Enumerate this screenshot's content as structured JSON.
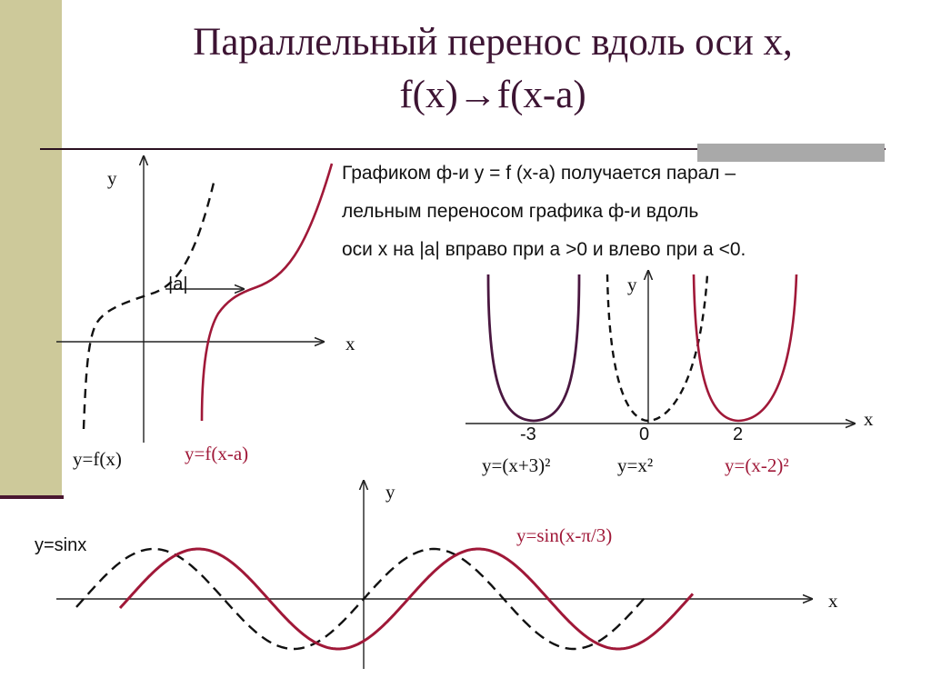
{
  "title": {
    "line1": "Параллельный перенос вдоль оси х,",
    "line2": "f(x)→f(x-a)"
  },
  "description": {
    "line1": "Графиком ф-и у = f (х-а) получается парал –",
    "line2": "лельным переносом графика ф-и вдоль",
    "line3": "оси х на |а| вправо при а >0 и влево при а <0."
  },
  "figure1": {
    "y_axis": "y",
    "x_axis": "x",
    "shift_label": "|a|",
    "curve_original": "y=f(x)",
    "curve_shifted": "y=f(x-a)"
  },
  "figure2": {
    "y_axis": "y",
    "x_axis": "x",
    "ticks": [
      "-3",
      "0",
      "2"
    ],
    "curve_left": "y=(x+3)²",
    "curve_mid": "y=x²",
    "curve_right": "y=(x-2)²"
  },
  "figure3": {
    "y_axis": "y",
    "x_axis": "x",
    "curve_original": "y=sinx",
    "curve_shifted": "y=sin(x-π/3)"
  },
  "colors": {
    "title": "#3d1433",
    "accent_red": "#a01838",
    "dark_purple": "#4a1740",
    "band": "#cdc99a"
  }
}
